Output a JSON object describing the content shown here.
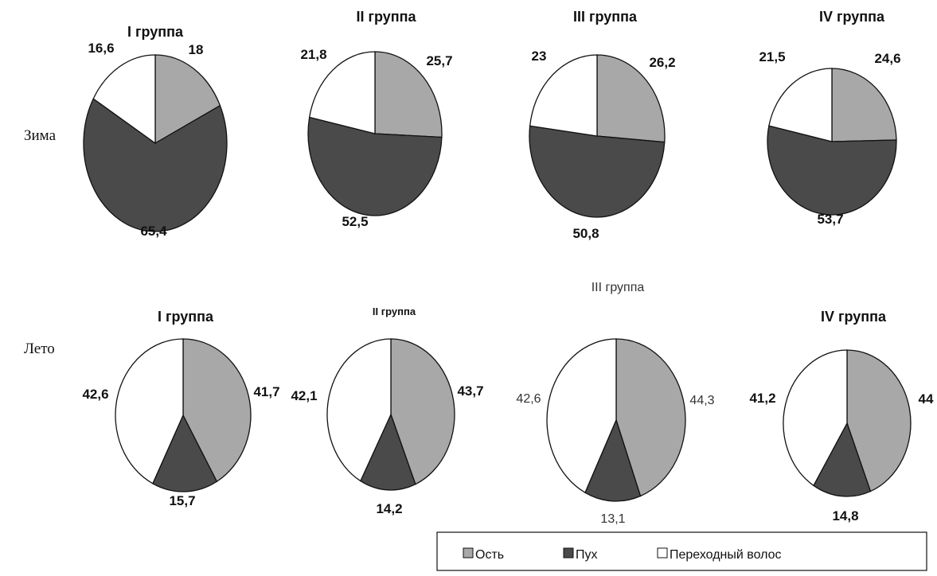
{
  "chart_data": {
    "type": "pie",
    "legend": {
      "position": "bottom-right",
      "items": [
        {
          "label": "Ость",
          "color": "#a8a8a8"
        },
        {
          "label": "Пух",
          "color": "#4a4a4a"
        },
        {
          "label": "Переходный волос",
          "color": "#ffffff"
        }
      ]
    },
    "rows": [
      {
        "label": "Зима",
        "charts": [
          {
            "title": "I группа",
            "slices": [
              {
                "series": "Ость",
                "value": 18,
                "label": "18"
              },
              {
                "series": "Пух",
                "value": 65.4,
                "label": "65,4"
              },
              {
                "series": "Переходный волос",
                "value": 16.6,
                "label": "16,6"
              }
            ]
          },
          {
            "title": "II группа",
            "slices": [
              {
                "series": "Ость",
                "value": 25.7,
                "label": "25,7"
              },
              {
                "series": "Пух",
                "value": 52.5,
                "label": "52,5"
              },
              {
                "series": "Переходный волос",
                "value": 21.8,
                "label": "21,8"
              }
            ]
          },
          {
            "title": "III группа",
            "slices": [
              {
                "series": "Ость",
                "value": 26.2,
                "label": "26,2"
              },
              {
                "series": "Пух",
                "value": 50.8,
                "label": "50,8"
              },
              {
                "series": "Переходный волос",
                "value": 23,
                "label": "23"
              }
            ]
          },
          {
            "title": "IV группа",
            "slices": [
              {
                "series": "Ость",
                "value": 24.6,
                "label": "24,6"
              },
              {
                "series": "Пух",
                "value": 53.7,
                "label": "53,7"
              },
              {
                "series": "Переходный волос",
                "value": 21.5,
                "label": "21,5"
              }
            ]
          }
        ]
      },
      {
        "label": "Лето",
        "charts": [
          {
            "title": "I группа",
            "slices": [
              {
                "series": "Ость",
                "value": 41.7,
                "label": "41,7"
              },
              {
                "series": "Пух",
                "value": 15.7,
                "label": "15,7"
              },
              {
                "series": "Переходный волос",
                "value": 42.6,
                "label": "42,6"
              }
            ]
          },
          {
            "title": "II группа",
            "slices": [
              {
                "series": "Ость",
                "value": 43.7,
                "label": "43,7"
              },
              {
                "series": "Пух",
                "value": 14.2,
                "label": "14,2"
              },
              {
                "series": "Переходный волос",
                "value": 42.1,
                "label": "42,1"
              }
            ]
          },
          {
            "title": "III группа",
            "slices": [
              {
                "series": "Ость",
                "value": 44.3,
                "label": "44,3"
              },
              {
                "series": "Пух",
                "value": 13.1,
                "label": "13,1"
              },
              {
                "series": "Переходный волос",
                "value": 42.6,
                "label": "42,6"
              }
            ]
          },
          {
            "title": "IV группа",
            "slices": [
              {
                "series": "Ость",
                "value": 44,
                "label": "44"
              },
              {
                "series": "Пух",
                "value": 14.8,
                "label": "14,8"
              },
              {
                "series": "Переходный волос",
                "value": 41.2,
                "label": "41,2"
              }
            ]
          }
        ]
      }
    ]
  }
}
